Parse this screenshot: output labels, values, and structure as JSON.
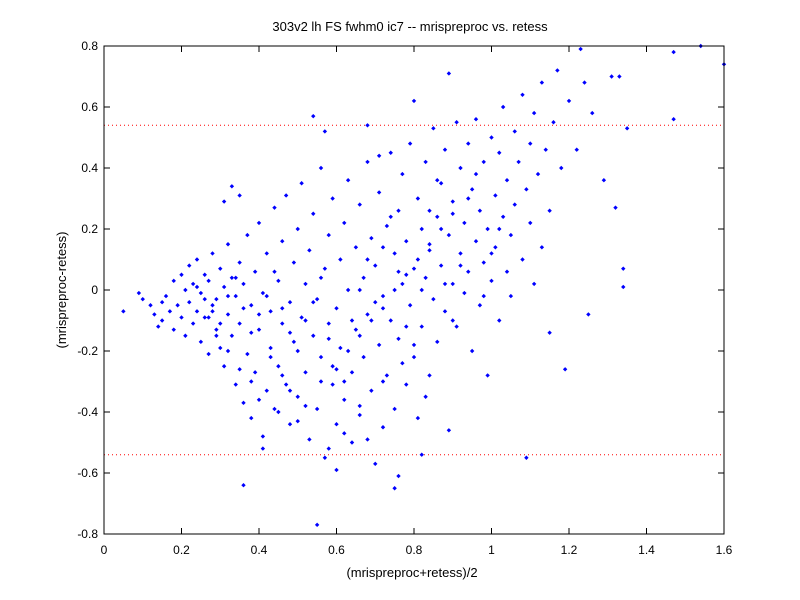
{
  "chart_data": {
    "type": "scatter",
    "title": "303v2 lh FS fwhm0 ic7 -- mrispreproc vs. retess",
    "xlabel": "(mrispreproc+retess)/2",
    "ylabel": "(mrispreproc-retess)",
    "xlim": [
      0,
      1.6
    ],
    "ylim": [
      -0.8,
      0.8
    ],
    "xticks": [
      "0",
      "0.2",
      "0.4",
      "0.6",
      "0.8",
      "1",
      "1.2",
      "1.4",
      "1.6"
    ],
    "yticks": [
      "-0.8",
      "-0.6",
      "-0.4",
      "-0.2",
      "0",
      "0.2",
      "0.4",
      "0.6",
      "0.8"
    ],
    "grid": false,
    "colors": {
      "points": "#0000ff",
      "reference_lines": "#ff0000",
      "axes": "#000000"
    },
    "reference_lines": [
      0.54,
      -0.54
    ],
    "points": [
      [
        0.05,
        -0.07
      ],
      [
        0.09,
        -0.01
      ],
      [
        0.1,
        -0.03
      ],
      [
        0.12,
        -0.05
      ],
      [
        0.13,
        -0.08
      ],
      [
        0.14,
        -0.12
      ],
      [
        0.15,
        -0.04
      ],
      [
        0.15,
        -0.1
      ],
      [
        0.16,
        -0.02
      ],
      [
        0.17,
        -0.07
      ],
      [
        0.18,
        0.03
      ],
      [
        0.18,
        -0.13
      ],
      [
        0.19,
        -0.05
      ],
      [
        0.2,
        0.05
      ],
      [
        0.2,
        -0.09
      ],
      [
        0.21,
        0.0
      ],
      [
        0.21,
        -0.15
      ],
      [
        0.22,
        0.08
      ],
      [
        0.22,
        -0.04
      ],
      [
        0.23,
        -0.11
      ],
      [
        0.23,
        0.02
      ],
      [
        0.24,
        -0.07
      ],
      [
        0.24,
        0.1
      ],
      [
        0.25,
        -0.17
      ],
      [
        0.25,
        -0.01
      ],
      [
        0.26,
        0.05
      ],
      [
        0.26,
        -0.09
      ],
      [
        0.27,
        -0.21
      ],
      [
        0.27,
        0.03
      ],
      [
        0.28,
        -0.05
      ],
      [
        0.28,
        0.12
      ],
      [
        0.29,
        -0.13
      ],
      [
        0.29,
        -0.03
      ],
      [
        0.3,
        0.07
      ],
      [
        0.3,
        -0.19
      ],
      [
        0.31,
        0.01
      ],
      [
        0.31,
        -0.25
      ],
      [
        0.32,
        -0.08
      ],
      [
        0.32,
        0.15
      ],
      [
        0.33,
        -0.15
      ],
      [
        0.33,
        0.04
      ],
      [
        0.34,
        -0.31
      ],
      [
        0.34,
        -0.02
      ],
      [
        0.35,
        0.09
      ],
      [
        0.35,
        -0.11
      ],
      [
        0.36,
        -0.37
      ],
      [
        0.36,
        0.02
      ],
      [
        0.37,
        -0.21
      ],
      [
        0.37,
        0.18
      ],
      [
        0.38,
        -0.05
      ],
      [
        0.38,
        -0.42
      ],
      [
        0.39,
        0.06
      ],
      [
        0.39,
        -0.27
      ],
      [
        0.4,
        -0.13
      ],
      [
        0.4,
        0.22
      ],
      [
        0.41,
        -0.48
      ],
      [
        0.41,
        -0.01
      ],
      [
        0.42,
        -0.33
      ],
      [
        0.42,
        0.12
      ],
      [
        0.43,
        -0.19
      ],
      [
        0.43,
        -0.07
      ],
      [
        0.44,
        0.27
      ],
      [
        0.44,
        -0.39
      ],
      [
        0.45,
        0.03
      ],
      [
        0.45,
        -0.25
      ],
      [
        0.46,
        -0.11
      ],
      [
        0.46,
        0.16
      ],
      [
        0.47,
        -0.31
      ],
      [
        0.47,
        0.31
      ],
      [
        0.48,
        -0.04
      ],
      [
        0.48,
        -0.44
      ],
      [
        0.49,
        0.09
      ],
      [
        0.49,
        -0.17
      ],
      [
        0.5,
        -0.35
      ],
      [
        0.5,
        0.2
      ],
      [
        0.51,
        -0.09
      ],
      [
        0.51,
        0.35
      ],
      [
        0.52,
        -0.27
      ],
      [
        0.52,
        0.02
      ],
      [
        0.53,
        -0.49
      ],
      [
        0.53,
        0.13
      ],
      [
        0.54,
        -0.15
      ],
      [
        0.54,
        0.25
      ],
      [
        0.55,
        -0.39
      ],
      [
        0.55,
        -0.03
      ],
      [
        0.56,
        0.4
      ],
      [
        0.56,
        -0.22
      ],
      [
        0.57,
        0.07
      ],
      [
        0.57,
        -0.55
      ],
      [
        0.58,
        -0.11
      ],
      [
        0.58,
        0.18
      ],
      [
        0.59,
        -0.31
      ],
      [
        0.59,
        0.3
      ],
      [
        0.6,
        -0.06
      ],
      [
        0.6,
        -0.44
      ],
      [
        0.61,
        0.1
      ],
      [
        0.61,
        -0.19
      ],
      [
        0.62,
        0.22
      ],
      [
        0.62,
        -0.36
      ],
      [
        0.63,
        0.0
      ],
      [
        0.63,
        0.36
      ],
      [
        0.64,
        -0.27
      ],
      [
        0.64,
        -0.5
      ],
      [
        0.65,
        0.14
      ],
      [
        0.65,
        -0.13
      ],
      [
        0.66,
        0.28
      ],
      [
        0.66,
        -0.41
      ],
      [
        0.67,
        0.04
      ],
      [
        0.67,
        -0.22
      ],
      [
        0.68,
        0.42
      ],
      [
        0.68,
        -0.08
      ],
      [
        0.69,
        0.17
      ],
      [
        0.69,
        -0.33
      ],
      [
        0.7,
        -0.57
      ],
      [
        0.7,
        0.08
      ],
      [
        0.71,
        -0.18
      ],
      [
        0.71,
        0.32
      ],
      [
        0.72,
        -0.45
      ],
      [
        0.72,
        -0.02
      ],
      [
        0.73,
        0.21
      ],
      [
        0.73,
        -0.28
      ],
      [
        0.74,
        0.45
      ],
      [
        0.74,
        -0.1
      ],
      [
        0.75,
        0.12
      ],
      [
        0.75,
        -0.39
      ],
      [
        0.76,
        0.26
      ],
      [
        0.76,
        -0.16
      ],
      [
        0.77,
        0.02
      ],
      [
        0.77,
        0.38
      ],
      [
        0.78,
        -0.31
      ],
      [
        0.78,
        0.16
      ],
      [
        0.79,
        -0.05
      ],
      [
        0.79,
        0.48
      ],
      [
        0.8,
        -0.22
      ],
      [
        0.8,
        0.07
      ],
      [
        0.81,
        0.3
      ],
      [
        0.81,
        -0.42
      ],
      [
        0.82,
        0.2
      ],
      [
        0.82,
        -0.12
      ],
      [
        0.83,
        0.04
      ],
      [
        0.83,
        0.42
      ],
      [
        0.84,
        -0.28
      ],
      [
        0.84,
        0.13
      ],
      [
        0.85,
        0.53
      ],
      [
        0.85,
        -0.03
      ],
      [
        0.86,
        0.24
      ],
      [
        0.86,
        -0.17
      ],
      [
        0.87,
        0.35
      ],
      [
        0.87,
        0.08
      ],
      [
        0.88,
        -0.07
      ],
      [
        0.88,
        0.46
      ],
      [
        0.89,
        0.18
      ],
      [
        0.89,
        -0.46
      ],
      [
        0.9,
        0.02
      ],
      [
        0.9,
        0.29
      ],
      [
        0.91,
        0.55
      ],
      [
        0.91,
        -0.12
      ],
      [
        0.92,
        0.12
      ],
      [
        0.92,
        0.4
      ],
      [
        0.93,
        -0.01
      ],
      [
        0.93,
        0.22
      ],
      [
        0.94,
        0.48
      ],
      [
        0.94,
        0.06
      ],
      [
        0.95,
        -0.2
      ],
      [
        0.95,
        0.33
      ],
      [
        0.96,
        0.16
      ],
      [
        0.96,
        0.56
      ],
      [
        0.97,
        -0.05
      ],
      [
        0.97,
        0.26
      ],
      [
        0.98,
        0.42
      ],
      [
        0.98,
        0.09
      ],
      [
        0.99,
        -0.28
      ],
      [
        0.99,
        0.2
      ],
      [
        1.0,
        0.5
      ],
      [
        1.0,
        0.03
      ],
      [
        1.01,
        0.31
      ],
      [
        1.01,
        0.14
      ],
      [
        1.02,
        -0.1
      ],
      [
        1.02,
        0.45
      ],
      [
        1.03,
        0.24
      ],
      [
        1.03,
        0.6
      ],
      [
        1.04,
        0.06
      ],
      [
        1.04,
        0.36
      ],
      [
        1.05,
        0.18
      ],
      [
        1.05,
        -0.02
      ],
      [
        1.06,
        0.52
      ],
      [
        1.06,
        0.28
      ],
      [
        1.07,
        0.42
      ],
      [
        1.08,
        0.1
      ],
      [
        1.08,
        0.64
      ],
      [
        1.09,
        0.33
      ],
      [
        1.09,
        -0.55
      ],
      [
        1.1,
        0.22
      ],
      [
        1.1,
        0.48
      ],
      [
        1.11,
        0.02
      ],
      [
        1.11,
        0.58
      ],
      [
        1.12,
        0.38
      ],
      [
        1.13,
        0.14
      ],
      [
        1.13,
        0.68
      ],
      [
        1.14,
        0.46
      ],
      [
        1.15,
        0.26
      ],
      [
        1.15,
        -0.14
      ],
      [
        1.16,
        0.55
      ],
      [
        1.17,
        0.72
      ],
      [
        1.18,
        0.4
      ],
      [
        1.19,
        -0.26
      ],
      [
        1.2,
        0.62
      ],
      [
        1.22,
        0.46
      ],
      [
        1.23,
        0.79
      ],
      [
        1.24,
        0.68
      ],
      [
        1.25,
        -0.08
      ],
      [
        1.26,
        0.58
      ],
      [
        1.29,
        0.36
      ],
      [
        1.31,
        0.7
      ],
      [
        1.32,
        0.27
      ],
      [
        1.33,
        0.7
      ],
      [
        1.34,
        0.07
      ],
      [
        1.34,
        0.01
      ],
      [
        1.35,
        0.53
      ],
      [
        1.47,
        0.78
      ],
      [
        1.47,
        0.56
      ],
      [
        1.54,
        0.8
      ],
      [
        1.6,
        0.74
      ],
      [
        0.31,
        0.29
      ],
      [
        0.33,
        0.34
      ],
      [
        0.35,
        0.31
      ],
      [
        0.54,
        0.57
      ],
      [
        0.57,
        0.52
      ],
      [
        0.68,
        0.54
      ],
      [
        0.71,
        0.44
      ],
      [
        0.8,
        0.62
      ],
      [
        0.89,
        0.71
      ],
      [
        0.75,
        -0.65
      ],
      [
        0.76,
        -0.61
      ],
      [
        0.55,
        -0.77
      ],
      [
        0.36,
        -0.64
      ],
      [
        0.6,
        -0.59
      ],
      [
        0.82,
        -0.54
      ],
      [
        0.41,
        -0.52
      ],
      [
        0.68,
        -0.49
      ],
      [
        0.62,
        -0.47
      ],
      [
        0.5,
        -0.43
      ],
      [
        0.45,
        -0.4
      ],
      [
        0.58,
        -0.52
      ],
      [
        0.66,
        -0.38
      ],
      [
        0.72,
        -0.3
      ],
      [
        0.77,
        -0.24
      ],
      [
        0.83,
        -0.35
      ],
      [
        0.27,
        -0.09
      ],
      [
        0.29,
        -0.15
      ],
      [
        0.32,
        -0.2
      ],
      [
        0.35,
        -0.26
      ],
      [
        0.38,
        -0.3
      ],
      [
        0.4,
        -0.36
      ],
      [
        0.43,
        -0.22
      ],
      [
        0.46,
        -0.28
      ],
      [
        0.48,
        -0.33
      ],
      [
        0.52,
        -0.38
      ],
      [
        0.56,
        -0.3
      ],
      [
        0.59,
        -0.25
      ],
      [
        0.63,
        -0.2
      ],
      [
        0.66,
        -0.15
      ],
      [
        0.69,
        -0.1
      ],
      [
        0.72,
        -0.06
      ],
      [
        0.75,
        0.0
      ],
      [
        0.78,
        0.05
      ],
      [
        0.81,
        0.1
      ],
      [
        0.84,
        0.15
      ],
      [
        0.87,
        0.2
      ],
      [
        0.9,
        0.25
      ],
      [
        0.24,
        0.01
      ],
      [
        0.26,
        -0.03
      ],
      [
        0.28,
        -0.07
      ],
      [
        0.3,
        -0.11
      ],
      [
        0.32,
        -0.02
      ],
      [
        0.34,
        0.04
      ],
      [
        0.36,
        -0.06
      ],
      [
        0.38,
        -0.14
      ],
      [
        0.4,
        -0.08
      ],
      [
        0.42,
        -0.02
      ],
      [
        0.44,
        0.06
      ],
      [
        0.46,
        -0.06
      ],
      [
        0.48,
        -0.14
      ],
      [
        0.5,
        -0.2
      ],
      [
        0.52,
        -0.1
      ],
      [
        0.54,
        -0.04
      ],
      [
        0.56,
        0.04
      ],
      [
        0.58,
        -0.16
      ],
      [
        0.6,
        -0.26
      ],
      [
        0.62,
        -0.3
      ],
      [
        0.64,
        -0.1
      ],
      [
        0.66,
        0.0
      ],
      [
        0.68,
        0.1
      ],
      [
        0.7,
        -0.04
      ],
      [
        0.72,
        0.14
      ],
      [
        0.74,
        0.24
      ],
      [
        0.76,
        0.06
      ],
      [
        0.78,
        -0.12
      ],
      [
        0.8,
        -0.18
      ],
      [
        0.82,
        0.0
      ],
      [
        0.84,
        0.26
      ],
      [
        0.86,
        0.36
      ],
      [
        0.88,
        0.02
      ],
      [
        0.9,
        -0.1
      ],
      [
        0.92,
        0.08
      ],
      [
        0.94,
        0.3
      ],
      [
        0.96,
        0.38
      ],
      [
        0.98,
        -0.02
      ],
      [
        1.0,
        0.12
      ],
      [
        1.02,
        0.2
      ]
    ]
  }
}
